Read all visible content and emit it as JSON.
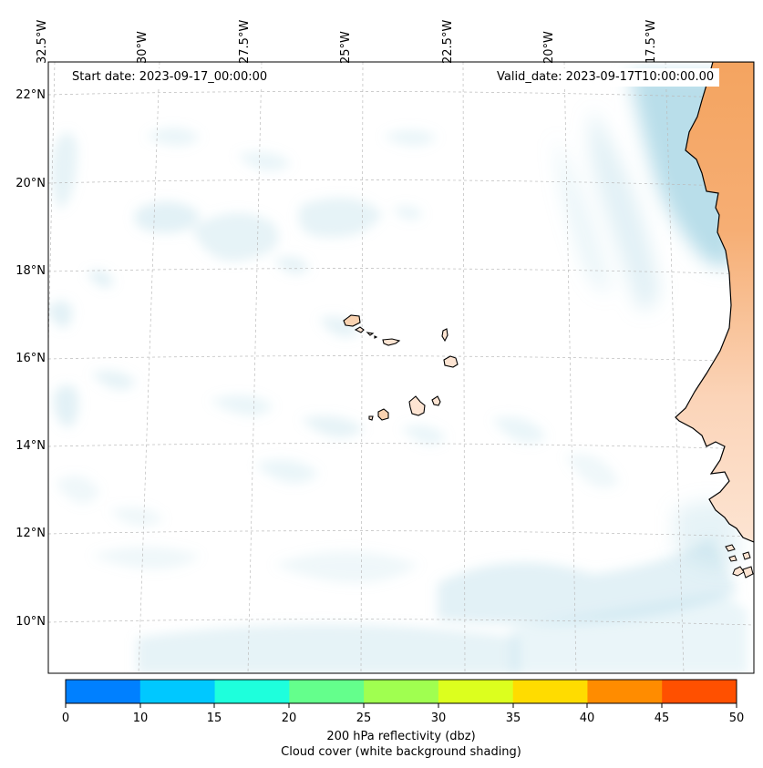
{
  "map": {
    "start_date": "Start date: 2023-09-17_00:00:00",
    "valid_date": "Valid_date: 2023-09-17T10:00:00.00",
    "lon_labels": [
      "32.5°W",
      "30°W",
      "27.5°W",
      "25°W",
      "22.5°W",
      "20°W",
      "17.5°W"
    ],
    "lat_labels": [
      "22°N",
      "20°N",
      "18°N",
      "16°N",
      "14°N",
      "12°N",
      "10°N"
    ],
    "ocean_color": "#ffffff",
    "land_color": "#f4a460",
    "cloud_color": "#add8e6",
    "coastline_color": "#000000"
  },
  "colorbar": {
    "ticks": [
      "0",
      "10",
      "15",
      "20",
      "25",
      "30",
      "35",
      "40",
      "45",
      "50"
    ],
    "colors": [
      "#0080ff",
      "#00c8ff",
      "#1effdc",
      "#64ff8c",
      "#a0ff50",
      "#dcff1e",
      "#ffdc00",
      "#ff8c00",
      "#ff5000"
    ],
    "label_line1": "200 hPa reflectivity (dbz)",
    "label_line2": "Cloud cover (white background shading)"
  }
}
